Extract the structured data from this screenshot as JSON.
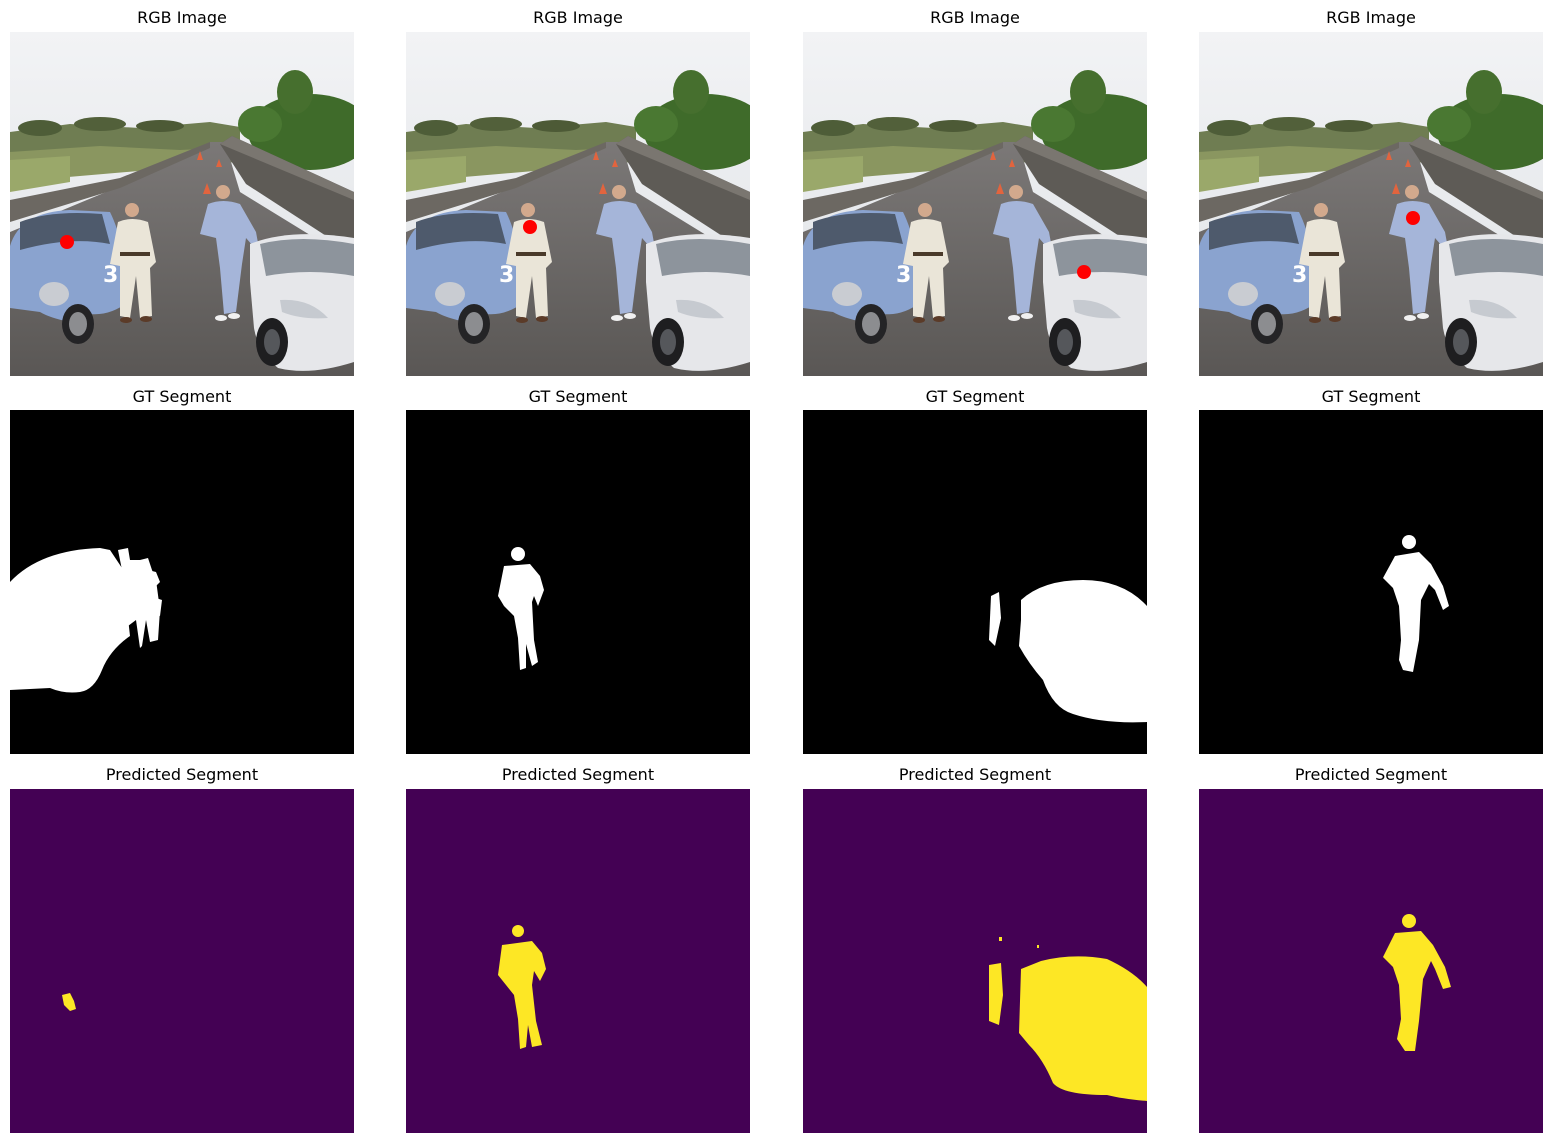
{
  "figure": {
    "columns": [
      {
        "rgb_title": "RGB Image",
        "gt_title": "GT Segment",
        "pred_title": "Predicted Segment"
      },
      {
        "rgb_title": "RGB Image",
        "gt_title": "GT Segment",
        "pred_title": "Predicted Segment"
      },
      {
        "rgb_title": "RGB Image",
        "gt_title": "GT Segment",
        "pred_title": "Predicted Segment"
      },
      {
        "rgb_title": "RGB Image",
        "gt_title": "GT Segment",
        "pred_title": "Predicted Segment"
      }
    ]
  },
  "colors": {
    "point_marker": "#ff0000",
    "gt_background": "#000000",
    "gt_foreground": "#ffffff",
    "pred_background": "#440154",
    "pred_foreground": "#fde725"
  }
}
